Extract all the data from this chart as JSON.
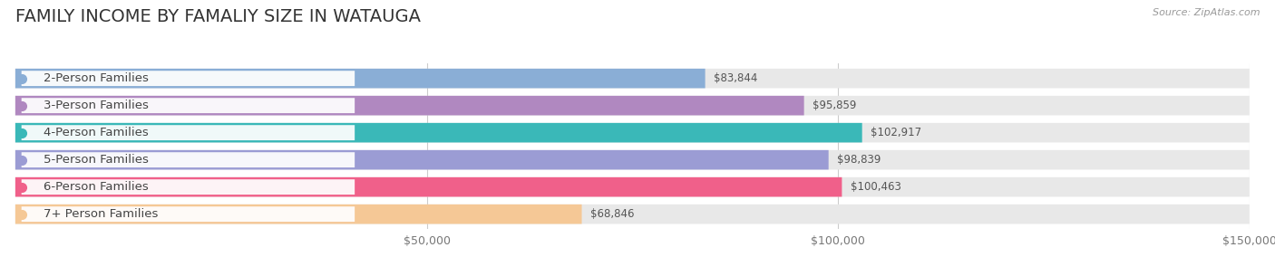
{
  "title": "FAMILY INCOME BY FAMALIY SIZE IN WATAUGA",
  "source_text": "Source: ZipAtlas.com",
  "categories": [
    "2-Person Families",
    "3-Person Families",
    "4-Person Families",
    "5-Person Families",
    "6-Person Families",
    "7+ Person Families"
  ],
  "values": [
    83844,
    95859,
    102917,
    98839,
    100463,
    68846
  ],
  "bar_colors": [
    "#8aaed6",
    "#b088c0",
    "#3ab8b8",
    "#9b9cd4",
    "#f0608a",
    "#f5c896"
  ],
  "value_labels": [
    "$83,844",
    "$95,859",
    "$102,917",
    "$98,839",
    "$100,463",
    "$68,846"
  ],
  "xlim": [
    0,
    150000
  ],
  "xticks": [
    0,
    50000,
    100000,
    150000
  ],
  "xtick_labels": [
    "",
    "$50,000",
    "$100,000",
    "$150,000"
  ],
  "background_color": "#ffffff",
  "bar_bg_color": "#e8e8e8",
  "title_fontsize": 14,
  "label_fontsize": 9.5,
  "value_fontsize": 8.5,
  "tick_fontsize": 9
}
